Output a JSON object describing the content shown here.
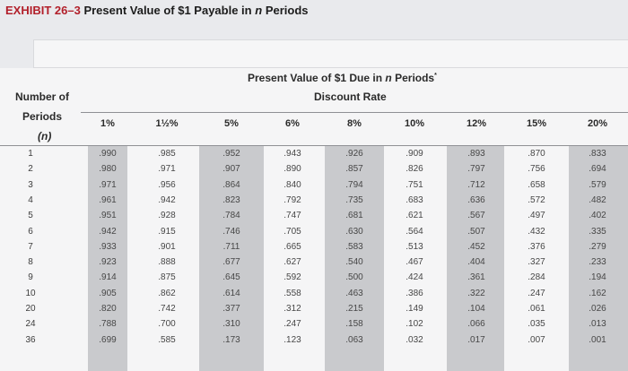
{
  "title": {
    "label": "EXHIBIT 26–3",
    "text_before": "Present Value of $1 Payable in",
    "var": "n",
    "text_after": "Periods"
  },
  "header": {
    "main_before": "Present Value of $1 Due in",
    "main_var": "n",
    "main_after": "Periods",
    "footnote_mark": "*",
    "sub": "Discount Rate"
  },
  "period_label": {
    "line1": "Number of",
    "line2": "Periods",
    "line3": "(n)"
  },
  "columns": [
    "1%",
    "1½%",
    "5%",
    "6%",
    "8%",
    "10%",
    "12%",
    "15%",
    "20%"
  ],
  "rows": [
    {
      "period": "1",
      "values": [
        ".990",
        ".985",
        ".952",
        ".943",
        ".926",
        ".909",
        ".893",
        ".870",
        ".833"
      ]
    },
    {
      "period": "2",
      "values": [
        ".980",
        ".971",
        ".907",
        ".890",
        ".857",
        ".826",
        ".797",
        ".756",
        ".694"
      ]
    },
    {
      "period": "3",
      "values": [
        ".971",
        ".956",
        ".864",
        ".840",
        ".794",
        ".751",
        ".712",
        ".658",
        ".579"
      ]
    },
    {
      "period": "4",
      "values": [
        ".961",
        ".942",
        ".823",
        ".792",
        ".735",
        ".683",
        ".636",
        ".572",
        ".482"
      ]
    },
    {
      "period": "5",
      "values": [
        ".951",
        ".928",
        ".784",
        ".747",
        ".681",
        ".621",
        ".567",
        ".497",
        ".402"
      ]
    },
    {
      "period": "6",
      "values": [
        ".942",
        ".915",
        ".746",
        ".705",
        ".630",
        ".564",
        ".507",
        ".432",
        ".335"
      ]
    },
    {
      "period": "7",
      "values": [
        ".933",
        ".901",
        ".711",
        ".665",
        ".583",
        ".513",
        ".452",
        ".376",
        ".279"
      ]
    },
    {
      "period": "8",
      "values": [
        ".923",
        ".888",
        ".677",
        ".627",
        ".540",
        ".467",
        ".404",
        ".327",
        ".233"
      ]
    },
    {
      "period": "9",
      "values": [
        ".914",
        ".875",
        ".645",
        ".592",
        ".500",
        ".424",
        ".361",
        ".284",
        ".194"
      ]
    },
    {
      "period": "10",
      "values": [
        ".905",
        ".862",
        ".614",
        ".558",
        ".463",
        ".386",
        ".322",
        ".247",
        ".162"
      ]
    },
    {
      "period": "20",
      "values": [
        ".820",
        ".742",
        ".377",
        ".312",
        ".215",
        ".149",
        ".104",
        ".061",
        ".026"
      ]
    },
    {
      "period": "24",
      "values": [
        ".788",
        ".700",
        ".310",
        ".247",
        ".158",
        ".102",
        ".066",
        ".035",
        ".013"
      ]
    },
    {
      "period": "36",
      "values": [
        ".699",
        ".585",
        ".173",
        ".123",
        ".063",
        ".032",
        ".017",
        ".007",
        ".001"
      ]
    }
  ],
  "colors": {
    "exhibit_red": "#b21f2a",
    "band_gray": "#c9cacd",
    "panel": "#f5f5f6"
  }
}
